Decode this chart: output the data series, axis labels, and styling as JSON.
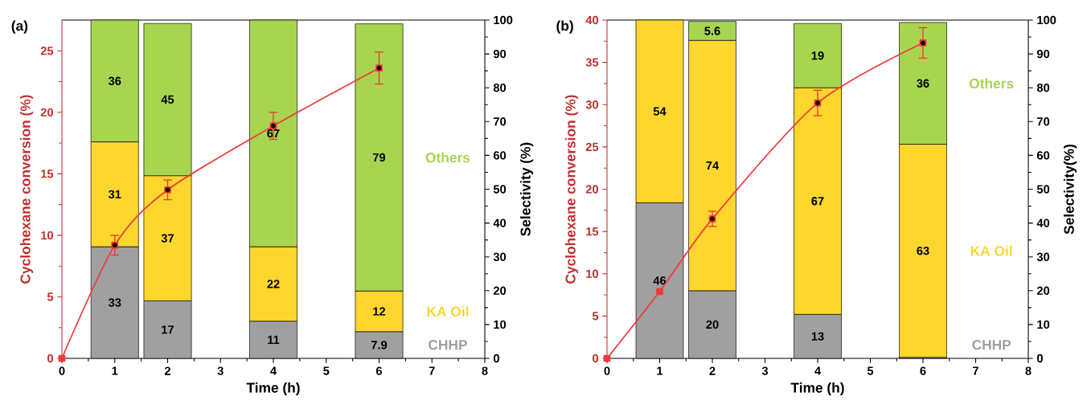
{
  "chart_data": [
    {
      "type": "bar",
      "title": "(a)",
      "xlabel": "Time (h)",
      "ylabel": "Cyclohexane conversion (%)",
      "y2label": "Selectivity (%)",
      "stacked": true,
      "x": [
        1,
        2,
        4,
        6
      ],
      "xlim": [
        0,
        8
      ],
      "xticks": [
        0,
        1,
        2,
        3,
        4,
        5,
        6,
        7,
        8
      ],
      "ylim": [
        0,
        27.5
      ],
      "yticks": [
        0,
        5,
        10,
        15,
        20,
        25
      ],
      "y2lim": [
        0,
        100
      ],
      "y2ticks": [
        0,
        10,
        20,
        30,
        40,
        50,
        60,
        70,
        80,
        90,
        100
      ],
      "series": [
        {
          "name": "CHHP",
          "color": "#a0a0a0",
          "axis": "y2",
          "values": [
            33,
            17,
            11,
            7.9
          ],
          "value_labels": [
            "33",
            "17",
            "11",
            "7.9"
          ]
        },
        {
          "name": "KA Oil",
          "color": "#fdd62e",
          "axis": "y2",
          "values": [
            31,
            37,
            22,
            12
          ],
          "value_labels": [
            "31",
            "37",
            "22",
            "12"
          ]
        },
        {
          "name": "Others",
          "color": "#a8d54f",
          "axis": "y2",
          "values": [
            36,
            45,
            67,
            79
          ],
          "value_labels": [
            "36",
            "45",
            "67",
            "79"
          ]
        },
        {
          "type": "line",
          "color": "#ee3b3b",
          "axis": "y",
          "marker": "square",
          "x": [
            0,
            1,
            2,
            4,
            6
          ],
          "values": [
            0,
            9.2,
            13.7,
            18.9,
            23.6
          ],
          "errors": [
            null,
            0.8,
            0.8,
            1.1,
            1.3
          ]
        }
      ]
    },
    {
      "type": "bar",
      "title": "(b)",
      "xlabel": "Time (h)",
      "ylabel": "Cyclohexane conversion (%)",
      "y2label": "Selectivity(%)",
      "stacked": true,
      "x": [
        1,
        2,
        4,
        6
      ],
      "xlim": [
        0,
        8
      ],
      "xticks": [
        0,
        1,
        2,
        3,
        4,
        5,
        6,
        7,
        8
      ],
      "ylim": [
        0,
        40
      ],
      "yticks": [
        0,
        5,
        10,
        15,
        20,
        25,
        30,
        35,
        40
      ],
      "y2lim": [
        0,
        100
      ],
      "y2ticks": [
        0,
        10,
        20,
        30,
        40,
        50,
        60,
        70,
        80,
        90,
        100
      ],
      "series": [
        {
          "name": "CHHP",
          "color": "#a0a0a0",
          "axis": "y2",
          "values": [
            46,
            20,
            13,
            0.3
          ],
          "value_labels": [
            "46",
            "20",
            "13",
            null
          ]
        },
        {
          "name": "KA Oil",
          "color": "#fdd62e",
          "axis": "y2",
          "values": [
            54,
            74,
            67,
            63
          ],
          "value_labels": [
            "54",
            "74",
            "67",
            "63"
          ]
        },
        {
          "name": "Others",
          "color": "#a8d54f",
          "axis": "y2",
          "values": [
            null,
            5.6,
            19,
            36
          ],
          "value_labels": [
            null,
            "5.6",
            "19",
            "36"
          ]
        },
        {
          "type": "line",
          "color": "#ee3b3b",
          "axis": "y",
          "marker": "square",
          "x": [
            0,
            1,
            2,
            4,
            6
          ],
          "values": [
            0,
            7.9,
            16.5,
            30.2,
            37.3
          ],
          "errors": [
            null,
            null,
            0.9,
            1.5,
            1.8
          ]
        }
      ]
    }
  ]
}
